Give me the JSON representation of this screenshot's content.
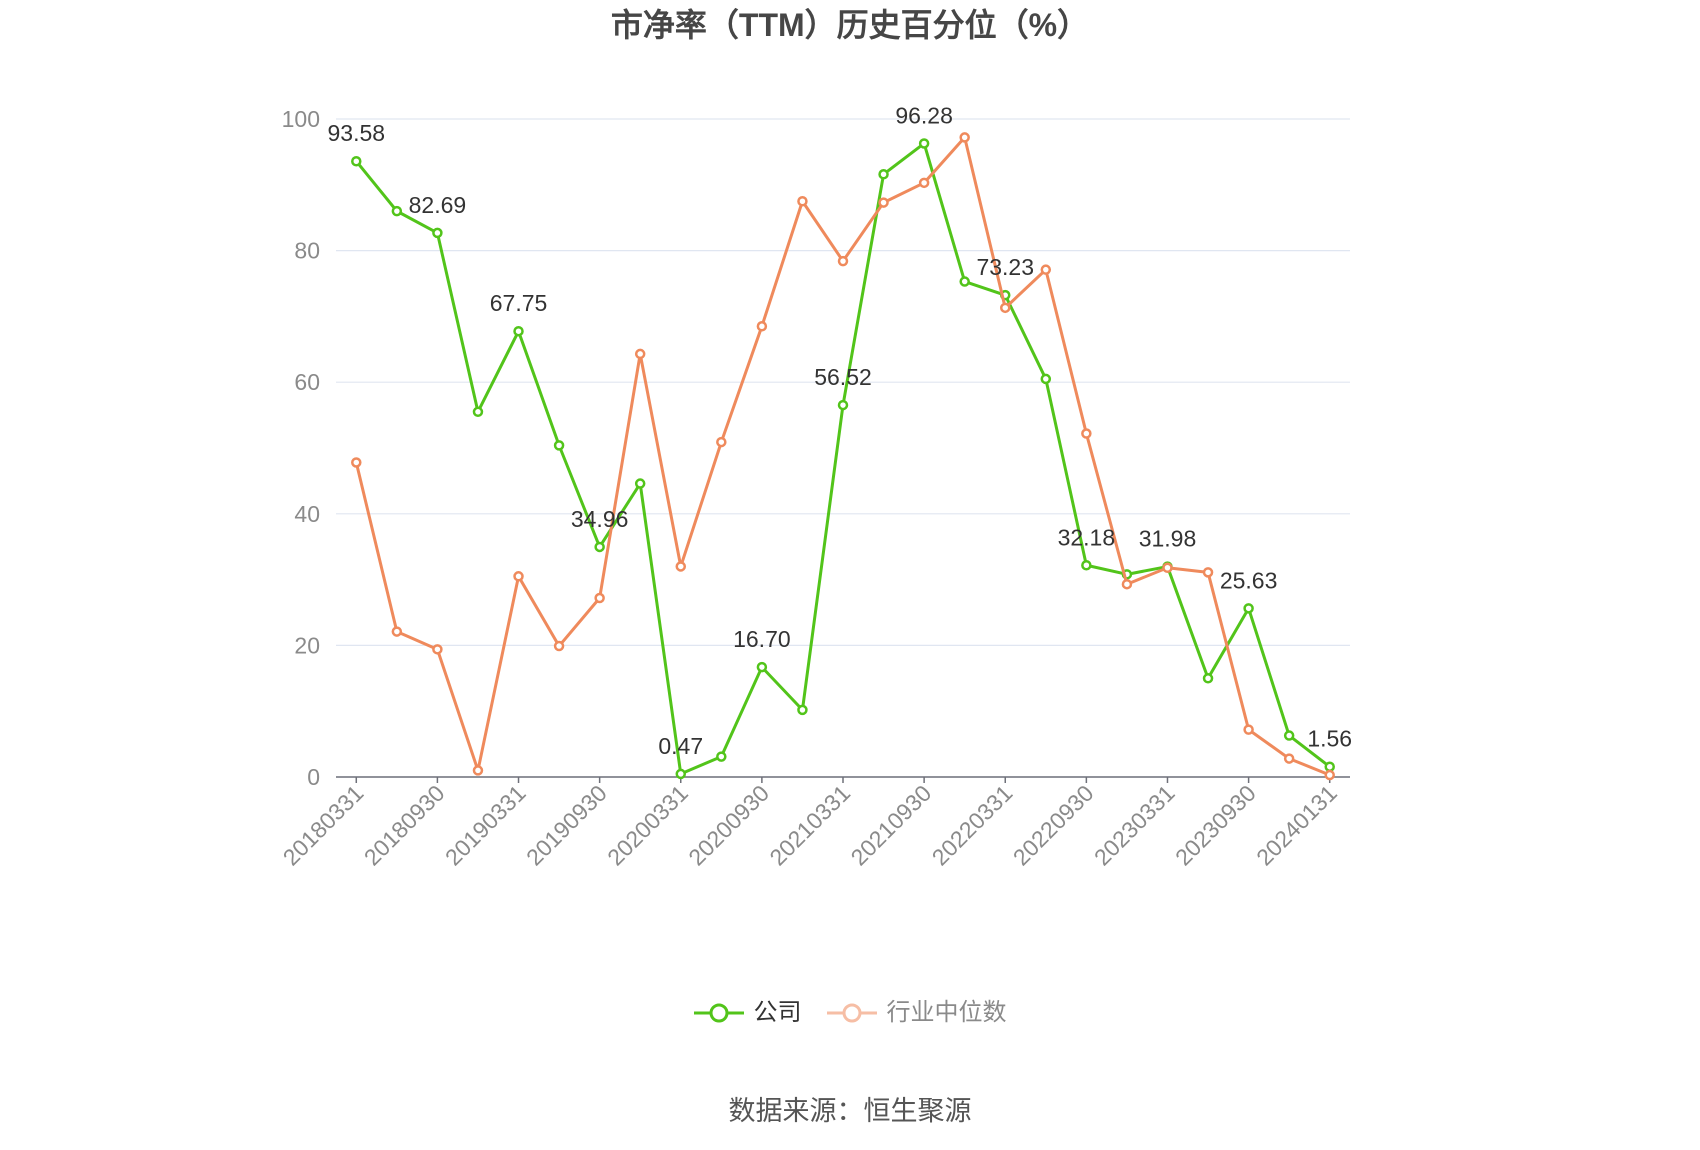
{
  "chart_data": {
    "type": "line",
    "title": "市净率（TTM）历史百分位（%）",
    "categories": [
      "20180331",
      "",
      "20180930",
      "",
      "20190331",
      "",
      "20190930",
      "",
      "20200331",
      "",
      "20200930",
      "",
      "20210331",
      "",
      "20210930",
      "",
      "20220331",
      "",
      "20220930",
      "",
      "20230331",
      "",
      "20230930",
      "",
      "20240131"
    ],
    "ylim": [
      0,
      100
    ],
    "y_ticks": [
      0,
      20,
      40,
      60,
      80,
      100
    ],
    "grid": true,
    "legend_position": "bottom",
    "series": [
      {
        "name": "公司",
        "color": "#52c41a",
        "values": [
          93.58,
          86.0,
          82.69,
          55.5,
          67.75,
          50.4,
          34.96,
          44.6,
          0.47,
          3.1,
          16.7,
          10.2,
          56.52,
          91.6,
          96.28,
          75.3,
          73.23,
          60.5,
          32.18,
          30.8,
          31.98,
          15.0,
          25.63,
          6.3,
          1.56
        ],
        "labels": [
          "93.58",
          "",
          "82.69",
          "",
          "67.75",
          "",
          "34.96",
          "",
          "0.47",
          "",
          "16.70",
          "",
          "56.52",
          "",
          "96.28",
          "",
          "73.23",
          "",
          "32.18",
          "",
          "31.98",
          "",
          "25.63",
          "",
          "1.56"
        ]
      },
      {
        "name": "行业中位数",
        "color": "#ef8a5c",
        "values": [
          47.8,
          22.1,
          19.4,
          1.0,
          30.5,
          19.9,
          27.2,
          64.3,
          32.0,
          50.9,
          68.5,
          87.5,
          78.4,
          87.3,
          90.3,
          97.2,
          71.3,
          77.1,
          52.2,
          29.3,
          31.8,
          31.1,
          7.2,
          2.8,
          0.3
        ]
      }
    ]
  },
  "source": "数据来源：恒生聚源"
}
